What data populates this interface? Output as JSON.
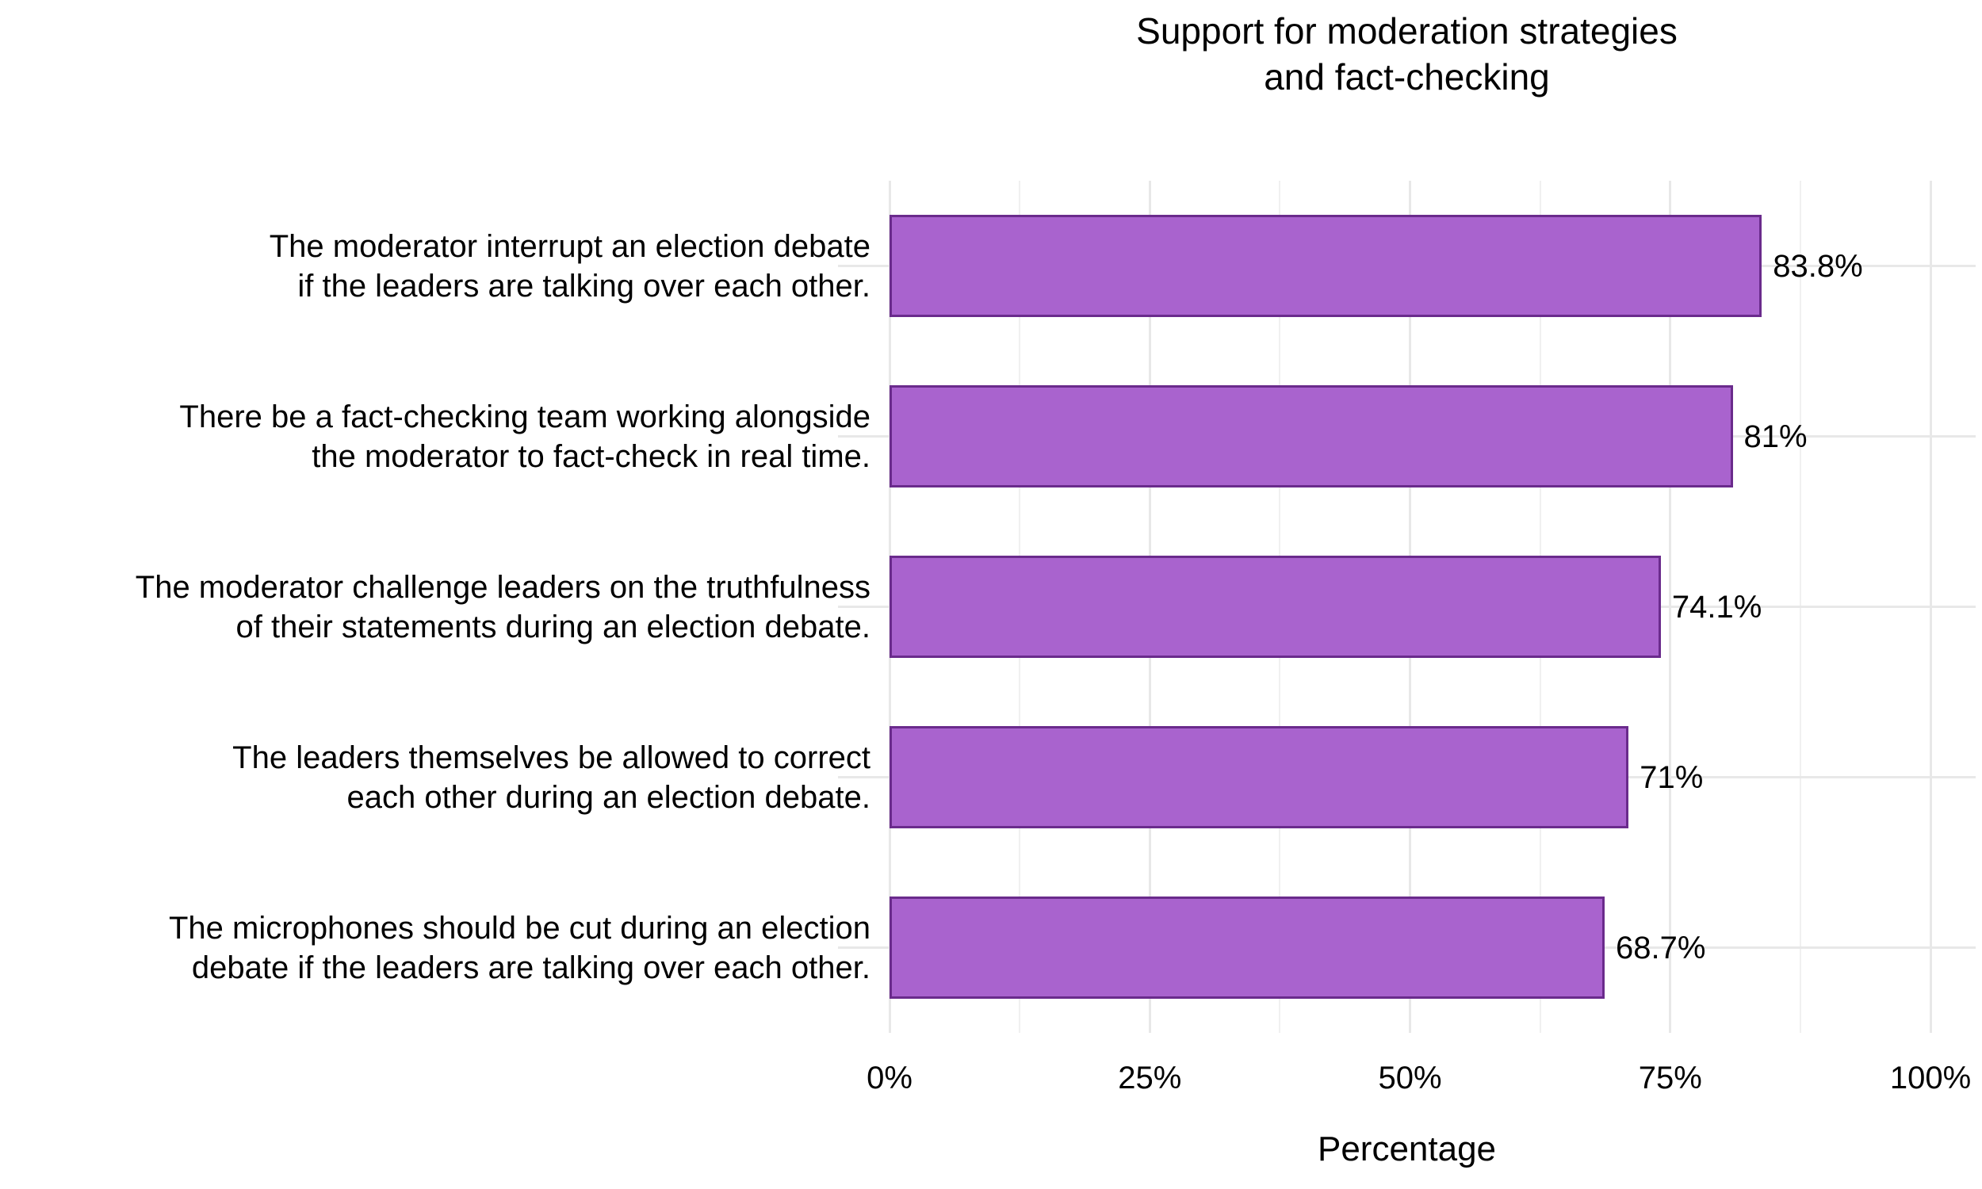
{
  "chart_data": {
    "type": "bar",
    "orientation": "horizontal",
    "title": "Support for moderation strategies and fact-checking",
    "title_lines": [
      "Support for moderation strategies",
      "and fact-checking"
    ],
    "categories": [
      "The moderator interrupt an election debate if the leaders are talking over each other.",
      "There be a fact-checking team working alongside the moderator to fact-check in real time.",
      "The moderator challenge leaders on the truthfulness of their statements during an election debate.",
      "The leaders themselves be allowed to correct each other during an election debate.",
      "The microphones should be cut during an election debate if the leaders are talking over each other."
    ],
    "category_lines": [
      [
        "The moderator interrupt an election debate",
        "if the leaders are talking over each other."
      ],
      [
        "There be a fact-checking team working alongside",
        "the moderator to fact-check in real time."
      ],
      [
        "The moderator challenge leaders on the truthfulness",
        "of their statements during an election debate."
      ],
      [
        "The leaders themselves be allowed to correct",
        "each other during an election debate."
      ],
      [
        "The microphones should be cut during an election",
        "debate if the leaders are talking over each other."
      ]
    ],
    "values": [
      83.8,
      81,
      74.1,
      71,
      68.7
    ],
    "value_labels": [
      "83.8%",
      "81%",
      "74.1%",
      "71%",
      "68.7%"
    ],
    "xlabel": "Percentage",
    "ylabel": "",
    "xlim": [
      0,
      100
    ],
    "x_ticks": [
      "0%",
      "25%",
      "50%",
      "75%",
      "100%"
    ],
    "x_tick_values": [
      0,
      25,
      50,
      75,
      100
    ],
    "x_minor_tick_values": [
      12.5,
      37.5,
      62.5,
      87.5
    ],
    "grid": "vertical major+minor, horizontal major at category centers",
    "legend": "none",
    "colors": {
      "bar_fill": "#a963ce",
      "bar_border": "#6a2b8c",
      "grid_major": "#e8e8e8",
      "grid_minor": "#f0f0f0",
      "text": "#000000",
      "background": "#ffffff"
    }
  }
}
